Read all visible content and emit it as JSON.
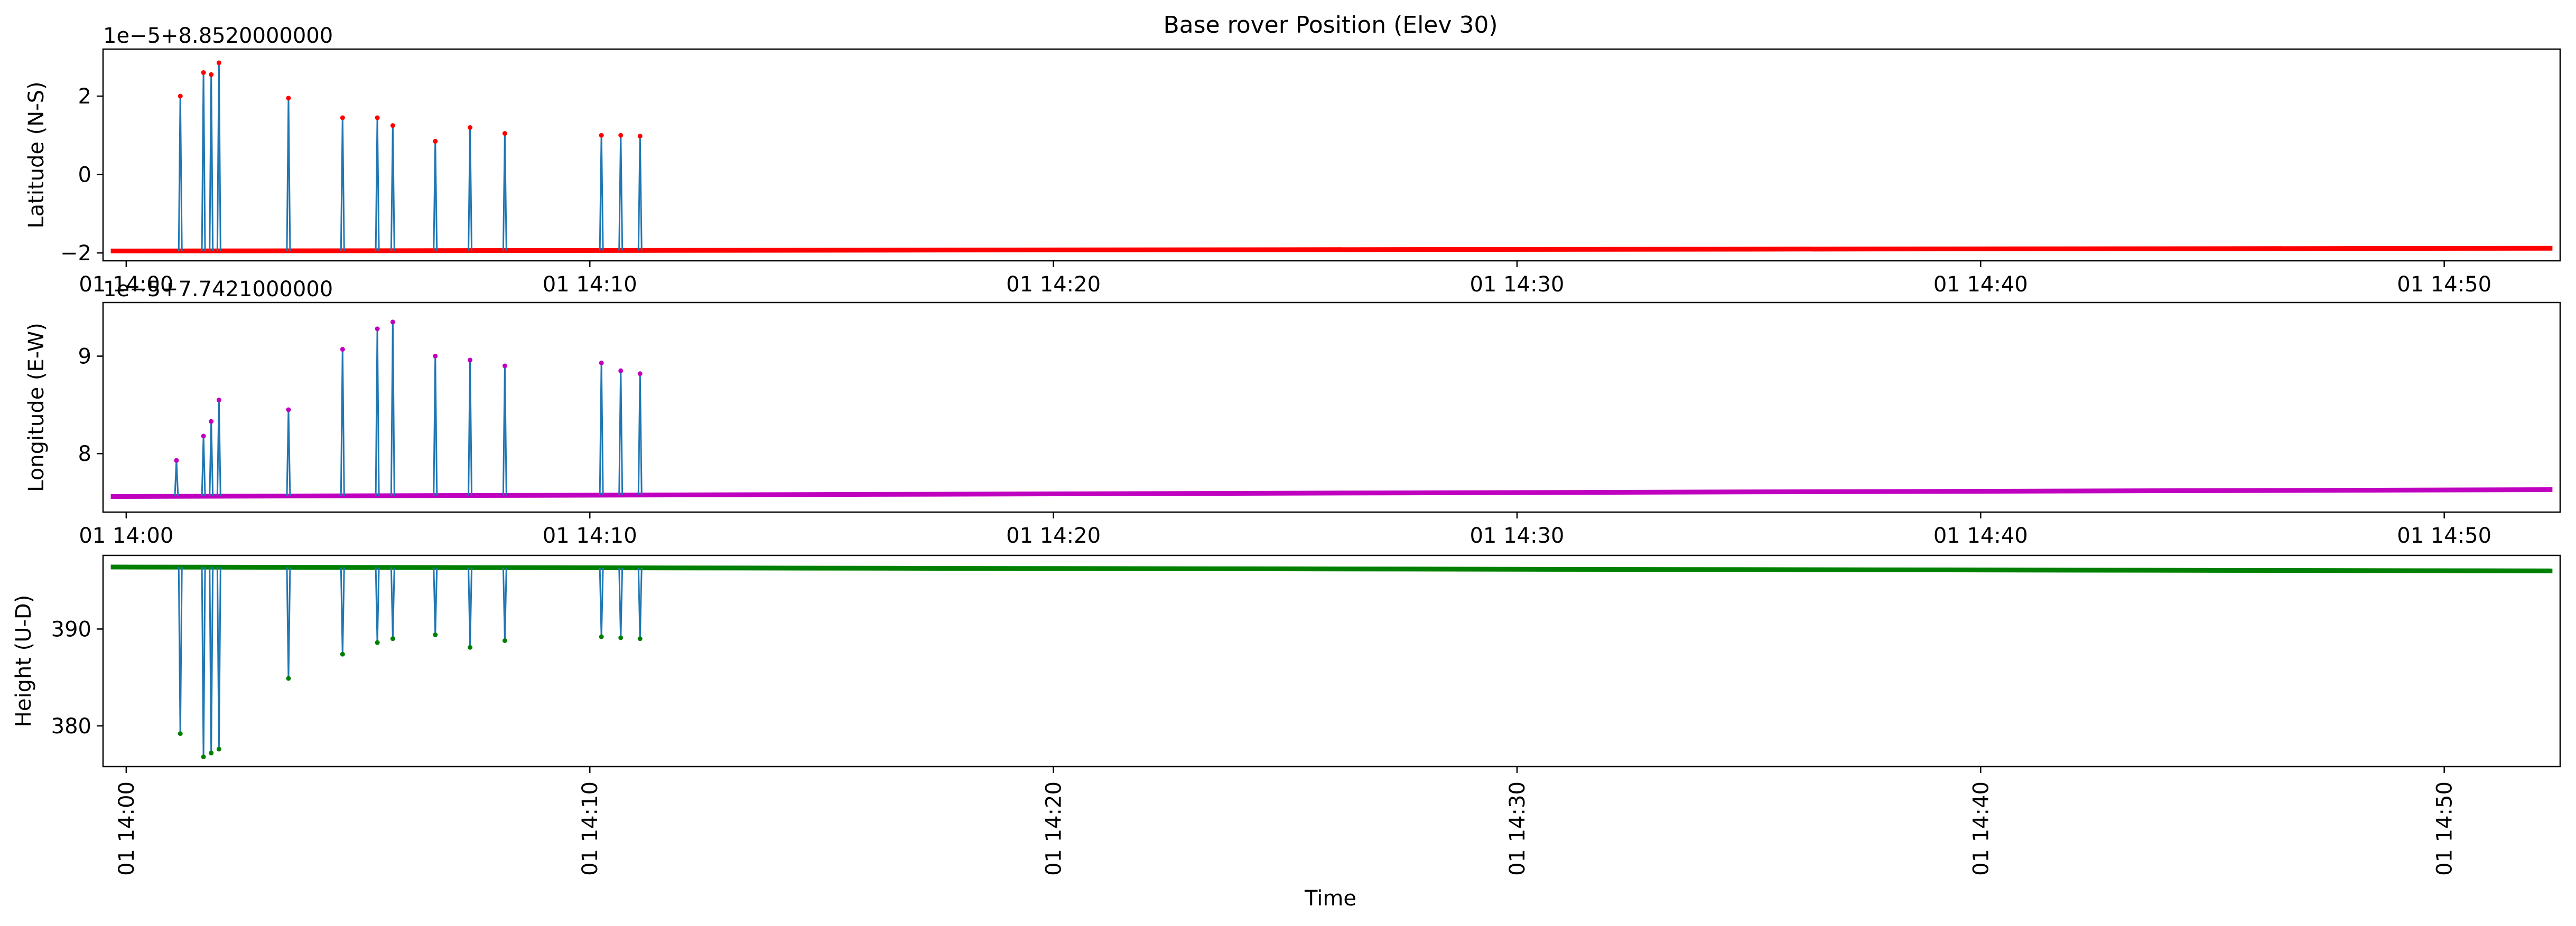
{
  "chart_data": {
    "title": "Base rover Position (Elev 30)",
    "xlabel": "Time",
    "x_ticks": [
      "01 14:00",
      "01 14:10",
      "01 14:20",
      "01 14:30",
      "01 14:40",
      "01 14:50"
    ],
    "x_range": [
      "13:59:30",
      "14:52:30"
    ],
    "subplots": [
      {
        "type": "line",
        "ylabel": "Latitude (N-S)",
        "offset_label": "1e−5+8.8520000000",
        "ylim": [
          -2.2,
          3.2
        ],
        "y_ticks": [
          -2,
          0,
          2
        ],
        "y_tick_labels": [
          "−2",
          "0",
          "2"
        ],
        "baseline": {
          "start": -1.95,
          "end": -1.88
        },
        "marker_color": "#ff0000",
        "x_tick_rotation": 0,
        "spikes": [
          {
            "t": "14:01:10",
            "y": 2.0
          },
          {
            "t": "14:01:40",
            "y": 2.6
          },
          {
            "t": "14:01:50",
            "y": 2.55
          },
          {
            "t": "14:02:00",
            "y": 2.85
          },
          {
            "t": "14:03:30",
            "y": 1.95
          },
          {
            "t": "14:04:40",
            "y": 1.45
          },
          {
            "t": "14:05:25",
            "y": 1.45
          },
          {
            "t": "14:05:45",
            "y": 1.25
          },
          {
            "t": "14:06:40",
            "y": 0.85
          },
          {
            "t": "14:07:25",
            "y": 1.2
          },
          {
            "t": "14:08:10",
            "y": 1.05
          },
          {
            "t": "14:10:15",
            "y": 1.0
          },
          {
            "t": "14:10:40",
            "y": 1.0
          },
          {
            "t": "14:11:05",
            "y": 0.98
          }
        ]
      },
      {
        "type": "line",
        "ylabel": "Longitude (E-W)",
        "offset_label": "1e−5+7.7421000000",
        "ylim": [
          7.4,
          9.55
        ],
        "y_ticks": [
          8,
          9
        ],
        "y_tick_labels": [
          "8",
          "9"
        ],
        "baseline": {
          "start": 7.56,
          "end": 7.63
        },
        "marker_color": "#bf00bf",
        "x_tick_rotation": 0,
        "spikes": [
          {
            "t": "14:01:05",
            "y": 7.93
          },
          {
            "t": "14:01:40",
            "y": 8.18
          },
          {
            "t": "14:01:50",
            "y": 8.33
          },
          {
            "t": "14:02:00",
            "y": 8.55
          },
          {
            "t": "14:03:30",
            "y": 8.45
          },
          {
            "t": "14:04:40",
            "y": 9.07
          },
          {
            "t": "14:05:25",
            "y": 9.28
          },
          {
            "t": "14:05:45",
            "y": 9.35
          },
          {
            "t": "14:06:40",
            "y": 9.0
          },
          {
            "t": "14:07:25",
            "y": 8.96
          },
          {
            "t": "14:08:10",
            "y": 8.9
          },
          {
            "t": "14:10:15",
            "y": 8.93
          },
          {
            "t": "14:10:40",
            "y": 8.85
          },
          {
            "t": "14:11:05",
            "y": 8.82
          }
        ]
      },
      {
        "type": "line",
        "ylabel": "Height (U-D)",
        "offset_label": "",
        "ylim": [
          375.8,
          397.6
        ],
        "y_ticks": [
          380,
          390
        ],
        "y_tick_labels": [
          "380",
          "390"
        ],
        "baseline": {
          "start": 396.4,
          "end": 396.0
        },
        "marker_color": "#008000",
        "x_tick_rotation": -90,
        "spikes": [
          {
            "t": "14:01:10",
            "y": 379.2
          },
          {
            "t": "14:01:40",
            "y": 376.8
          },
          {
            "t": "14:01:50",
            "y": 377.2
          },
          {
            "t": "14:02:00",
            "y": 377.6
          },
          {
            "t": "14:03:30",
            "y": 384.9
          },
          {
            "t": "14:04:40",
            "y": 387.4
          },
          {
            "t": "14:05:25",
            "y": 388.6
          },
          {
            "t": "14:05:45",
            "y": 389.0
          },
          {
            "t": "14:06:40",
            "y": 389.4
          },
          {
            "t": "14:07:25",
            "y": 388.1
          },
          {
            "t": "14:08:10",
            "y": 388.8
          },
          {
            "t": "14:10:15",
            "y": 389.2
          },
          {
            "t": "14:10:40",
            "y": 389.1
          },
          {
            "t": "14:11:05",
            "y": 389.0
          }
        ]
      }
    ],
    "colors": {
      "spike_line": "#1f77b4",
      "axis": "#000000"
    }
  }
}
